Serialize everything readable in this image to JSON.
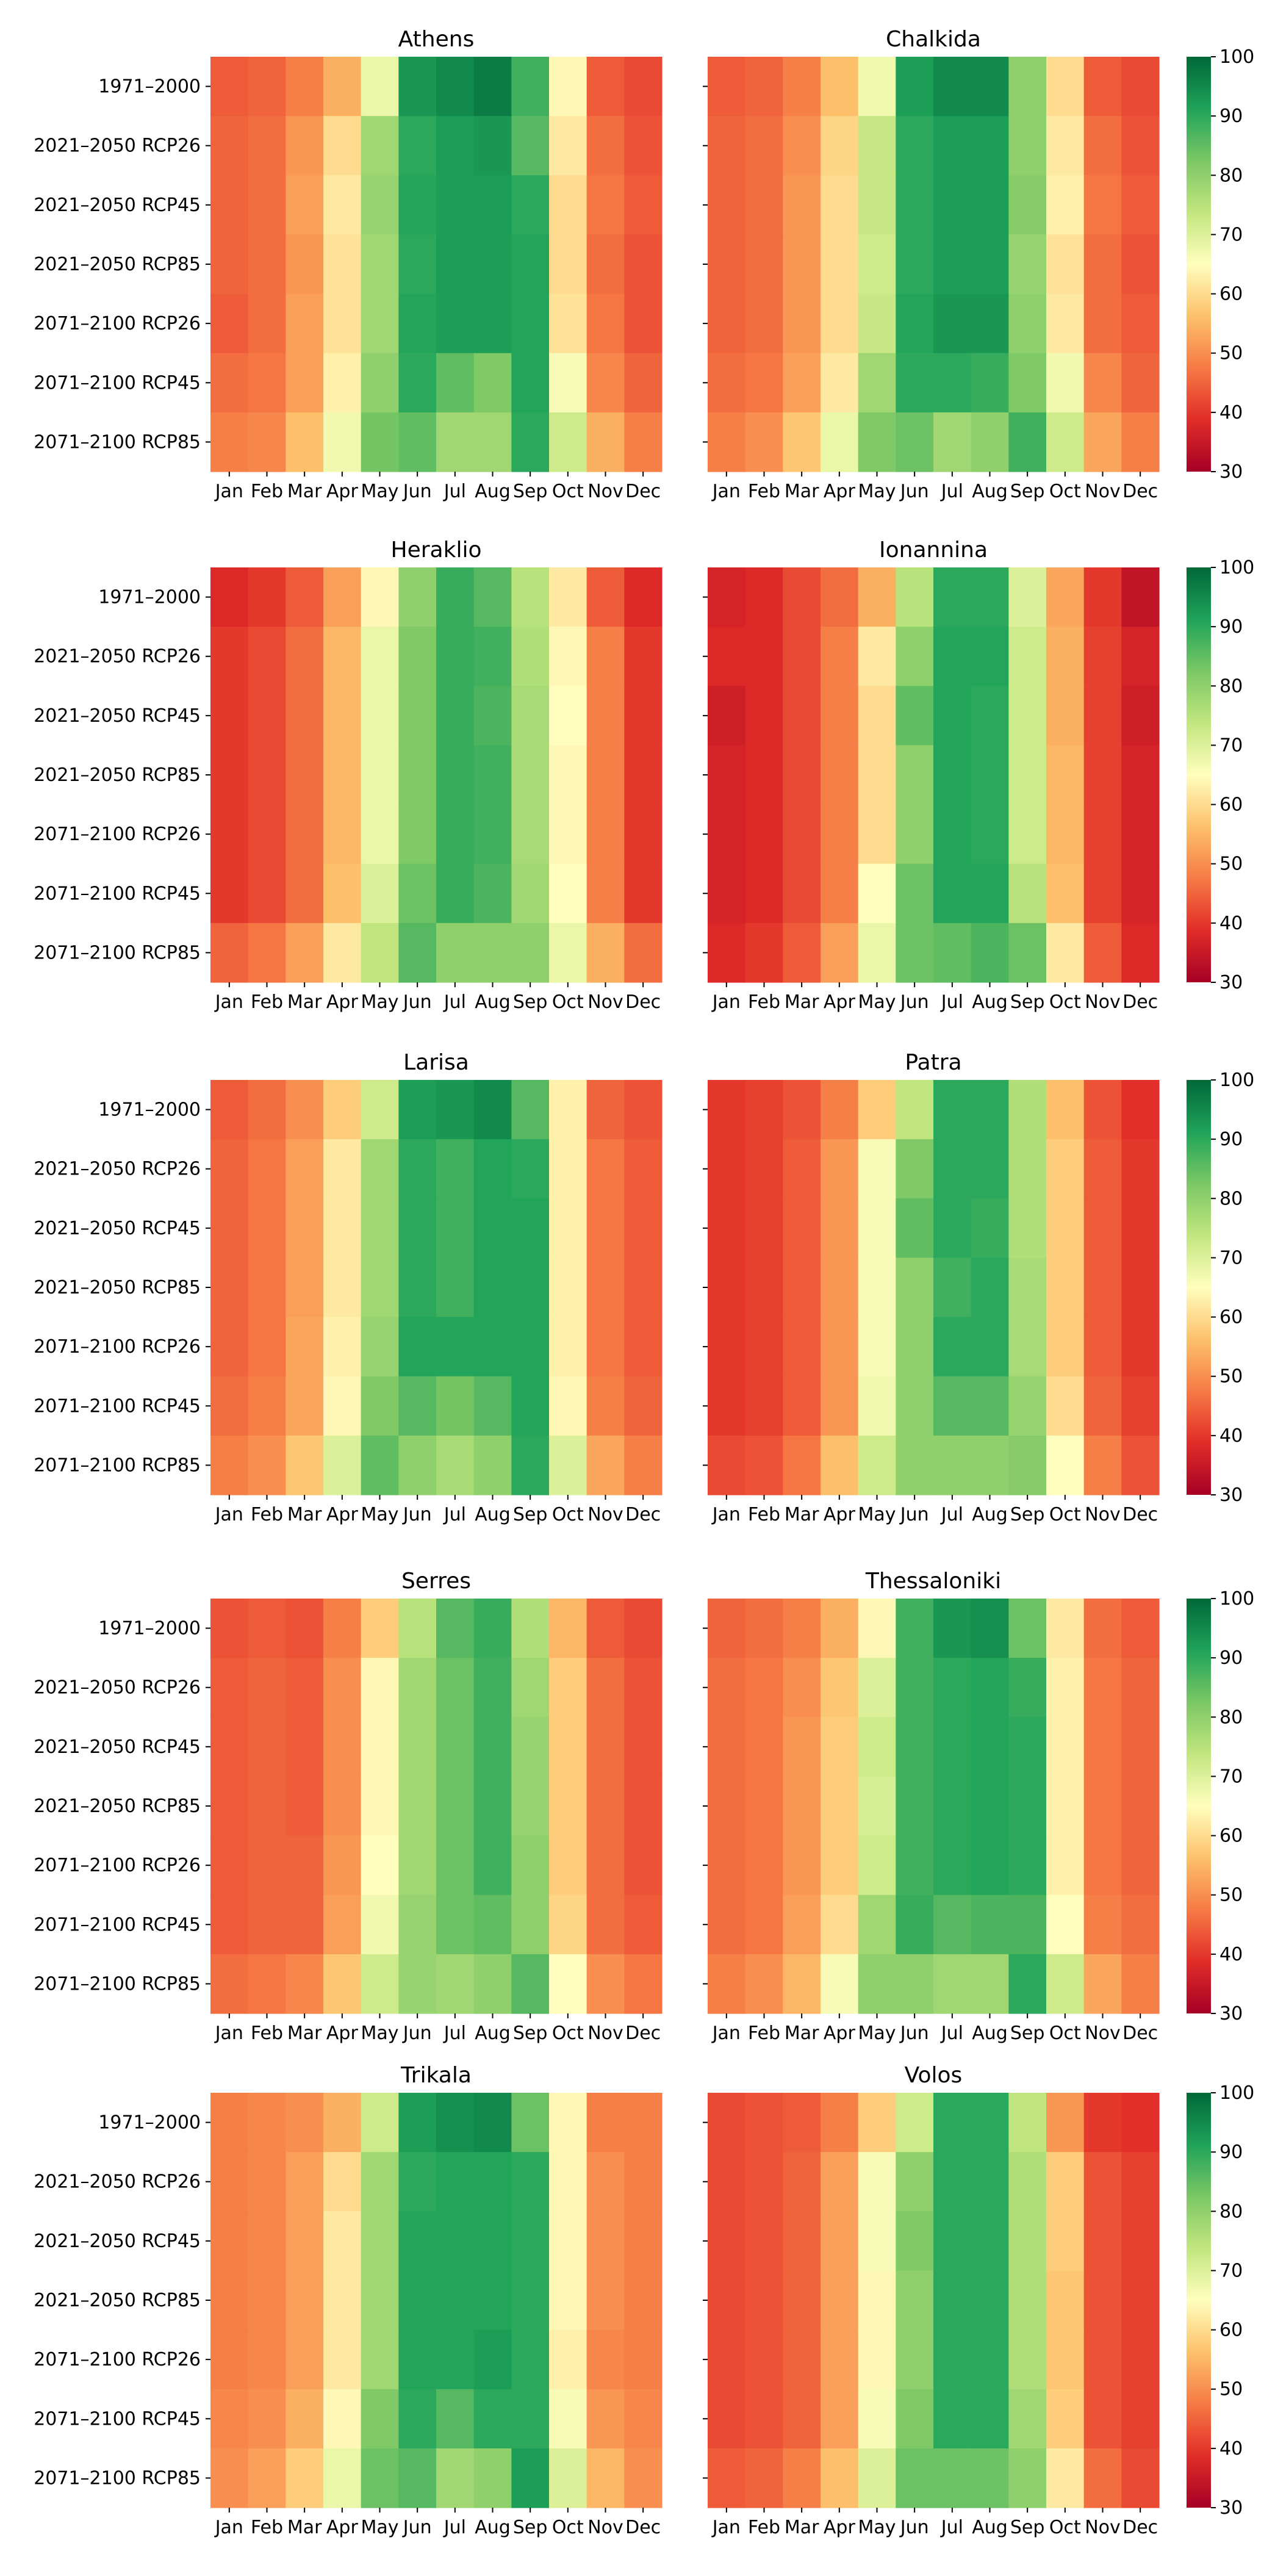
{
  "chart_data": {
    "type": "heatmap",
    "months": [
      "Jan",
      "Feb",
      "Mar",
      "Apr",
      "May",
      "Jun",
      "Jul",
      "Aug",
      "Sep",
      "Oct",
      "Nov",
      "Dec"
    ],
    "scenarios": [
      "1971–2000",
      "2021–2050 RCP26",
      "2021–2050 RCP45",
      "2021–2050 RCP85",
      "2071–2100 RCP26",
      "2071–2100 RCP45",
      "2071–2100 RCP85"
    ],
    "colorbar": {
      "min": 30,
      "max": 100,
      "ticks": [
        "30",
        "40",
        "50",
        "60",
        "70",
        "80",
        "90",
        "100"
      ],
      "colors": [
        "#a50026",
        "#e12d28",
        "#f67a45",
        "#fdc16b",
        "#fffebe",
        "#c2e67f",
        "#7bc765",
        "#1fa35a",
        "#006837"
      ]
    },
    "panels": [
      {
        "title": "Athens",
        "values": [
          [
            44,
            45,
            48,
            54,
            68,
            93,
            95,
            97,
            88,
            64,
            44,
            42
          ],
          [
            45,
            46,
            51,
            60,
            78,
            90,
            92,
            93,
            86,
            62,
            46,
            43
          ],
          [
            45,
            46,
            52,
            62,
            79,
            91,
            92,
            92,
            90,
            60,
            47,
            44
          ],
          [
            45,
            46,
            51,
            61,
            78,
            90,
            92,
            92,
            91,
            60,
            46,
            43
          ],
          [
            44,
            46,
            52,
            61,
            78,
            91,
            92,
            92,
            91,
            61,
            47,
            43
          ],
          [
            46,
            47,
            52,
            63,
            80,
            90,
            85,
            82,
            91,
            66,
            49,
            45
          ],
          [
            48,
            49,
            56,
            67,
            83,
            85,
            78,
            78,
            90,
            72,
            54,
            48
          ]
        ]
      },
      {
        "title": "Chalkida",
        "values": [
          [
            44,
            45,
            48,
            56,
            67,
            92,
            95,
            95,
            80,
            60,
            44,
            42
          ],
          [
            45,
            46,
            50,
            59,
            73,
            90,
            92,
            92,
            80,
            62,
            46,
            43
          ],
          [
            45,
            46,
            51,
            60,
            73,
            90,
            92,
            92,
            81,
            63,
            47,
            44
          ],
          [
            45,
            46,
            51,
            60,
            72,
            90,
            92,
            92,
            79,
            61,
            46,
            43
          ],
          [
            45,
            46,
            51,
            60,
            73,
            91,
            93,
            93,
            80,
            62,
            46,
            44
          ],
          [
            46,
            47,
            52,
            62,
            78,
            90,
            90,
            89,
            82,
            67,
            49,
            45
          ],
          [
            48,
            50,
            57,
            68,
            82,
            84,
            78,
            80,
            88,
            72,
            53,
            48
          ]
        ]
      },
      {
        "title": "Heraklio",
        "values": [
          [
            38,
            40,
            44,
            52,
            64,
            80,
            89,
            86,
            75,
            62,
            44,
            38
          ],
          [
            40,
            42,
            46,
            55,
            68,
            82,
            89,
            88,
            76,
            64,
            48,
            40
          ],
          [
            40,
            42,
            46,
            55,
            68,
            82,
            89,
            87,
            77,
            65,
            48,
            40
          ],
          [
            40,
            42,
            46,
            55,
            68,
            82,
            89,
            88,
            77,
            64,
            48,
            40
          ],
          [
            40,
            42,
            46,
            55,
            68,
            82,
            89,
            88,
            77,
            64,
            48,
            40
          ],
          [
            40,
            42,
            46,
            56,
            70,
            84,
            89,
            87,
            78,
            65,
            48,
            40
          ],
          [
            45,
            47,
            52,
            62,
            74,
            86,
            80,
            80,
            80,
            68,
            54,
            46
          ]
        ]
      },
      {
        "title": "Ionannina",
        "values": [
          [
            37,
            38,
            42,
            46,
            54,
            75,
            90,
            90,
            70,
            53,
            40,
            34
          ],
          [
            38,
            38,
            42,
            48,
            62,
            80,
            91,
            91,
            72,
            54,
            41,
            37
          ],
          [
            36,
            38,
            42,
            48,
            60,
            85,
            91,
            90,
            72,
            54,
            41,
            36
          ],
          [
            37,
            38,
            42,
            48,
            60,
            80,
            91,
            90,
            72,
            55,
            41,
            37
          ],
          [
            37,
            38,
            42,
            48,
            60,
            80,
            91,
            90,
            72,
            55,
            41,
            37
          ],
          [
            37,
            38,
            42,
            48,
            65,
            84,
            91,
            91,
            75,
            56,
            41,
            37
          ],
          [
            38,
            40,
            44,
            52,
            68,
            84,
            85,
            87,
            84,
            62,
            44,
            38
          ]
        ]
      },
      {
        "title": "Larisa",
        "values": [
          [
            44,
            46,
            50,
            58,
            72,
            92,
            93,
            95,
            86,
            63,
            45,
            43
          ],
          [
            45,
            47,
            52,
            62,
            78,
            90,
            88,
            91,
            90,
            63,
            47,
            44
          ],
          [
            45,
            47,
            52,
            62,
            78,
            90,
            88,
            91,
            91,
            63,
            47,
            44
          ],
          [
            45,
            47,
            52,
            62,
            78,
            90,
            88,
            91,
            91,
            63,
            47,
            44
          ],
          [
            45,
            47,
            53,
            63,
            79,
            91,
            91,
            91,
            91,
            63,
            47,
            44
          ],
          [
            46,
            48,
            53,
            64,
            82,
            86,
            83,
            86,
            91,
            64,
            48,
            45
          ],
          [
            48,
            50,
            57,
            70,
            85,
            80,
            77,
            80,
            90,
            70,
            53,
            48
          ]
        ]
      },
      {
        "title": "Patra",
        "values": [
          [
            40,
            41,
            43,
            48,
            58,
            74,
            90,
            90,
            76,
            56,
            43,
            39
          ],
          [
            40,
            41,
            44,
            51,
            66,
            82,
            90,
            90,
            76,
            58,
            44,
            40
          ],
          [
            40,
            41,
            44,
            51,
            66,
            85,
            90,
            89,
            76,
            58,
            44,
            40
          ],
          [
            40,
            41,
            44,
            51,
            66,
            80,
            88,
            90,
            77,
            58,
            44,
            40
          ],
          [
            40,
            41,
            44,
            51,
            66,
            80,
            90,
            90,
            77,
            58,
            44,
            40
          ],
          [
            40,
            41,
            44,
            51,
            67,
            80,
            86,
            86,
            79,
            60,
            45,
            41
          ],
          [
            42,
            43,
            47,
            56,
            72,
            80,
            80,
            80,
            81,
            65,
            48,
            43
          ]
        ]
      },
      {
        "title": "Serres",
        "values": [
          [
            43,
            44,
            43,
            48,
            58,
            75,
            86,
            89,
            76,
            55,
            44,
            42
          ],
          [
            44,
            45,
            44,
            50,
            64,
            78,
            84,
            88,
            78,
            58,
            46,
            43
          ],
          [
            44,
            45,
            44,
            50,
            64,
            78,
            84,
            88,
            79,
            58,
            46,
            43
          ],
          [
            44,
            45,
            44,
            50,
            64,
            78,
            84,
            88,
            79,
            58,
            46,
            43
          ],
          [
            44,
            45,
            45,
            51,
            65,
            78,
            84,
            88,
            80,
            58,
            46,
            43
          ],
          [
            44,
            45,
            45,
            52,
            67,
            79,
            84,
            85,
            80,
            59,
            46,
            44
          ],
          [
            46,
            47,
            49,
            57,
            72,
            79,
            78,
            80,
            86,
            65,
            50,
            47
          ]
        ]
      },
      {
        "title": "Thessaloniki",
        "values": [
          [
            45,
            46,
            48,
            54,
            64,
            88,
            93,
            94,
            84,
            62,
            46,
            44
          ],
          [
            46,
            47,
            50,
            57,
            70,
            88,
            90,
            91,
            89,
            63,
            47,
            45
          ],
          [
            46,
            47,
            51,
            58,
            72,
            88,
            90,
            91,
            90,
            63,
            47,
            45
          ],
          [
            46,
            47,
            51,
            58,
            71,
            88,
            90,
            91,
            90,
            63,
            47,
            45
          ],
          [
            46,
            47,
            51,
            58,
            72,
            88,
            90,
            91,
            90,
            63,
            47,
            45
          ],
          [
            46,
            47,
            52,
            60,
            78,
            89,
            86,
            87,
            87,
            65,
            48,
            46
          ],
          [
            48,
            50,
            55,
            66,
            80,
            80,
            78,
            78,
            90,
            72,
            53,
            48
          ]
        ]
      },
      {
        "title": "Trikala",
        "values": [
          [
            48,
            49,
            50,
            54,
            72,
            92,
            94,
            95,
            84,
            64,
            48,
            48
          ],
          [
            48,
            49,
            52,
            60,
            78,
            90,
            91,
            91,
            90,
            64,
            50,
            48
          ],
          [
            48,
            49,
            52,
            62,
            78,
            91,
            91,
            91,
            90,
            64,
            50,
            48
          ],
          [
            48,
            49,
            52,
            62,
            78,
            91,
            91,
            91,
            90,
            64,
            50,
            48
          ],
          [
            48,
            49,
            52,
            62,
            78,
            91,
            91,
            92,
            90,
            63,
            49,
            48
          ],
          [
            49,
            50,
            54,
            64,
            82,
            90,
            86,
            90,
            90,
            66,
            51,
            49
          ],
          [
            50,
            52,
            58,
            68,
            84,
            86,
            78,
            80,
            92,
            70,
            55,
            50
          ]
        ]
      },
      {
        "title": "Volos",
        "values": [
          [
            42,
            43,
            44,
            48,
            58,
            72,
            90,
            90,
            74,
            51,
            40,
            39
          ],
          [
            42,
            43,
            45,
            52,
            66,
            80,
            90,
            90,
            76,
            58,
            43,
            41
          ],
          [
            42,
            43,
            45,
            52,
            66,
            82,
            90,
            90,
            76,
            58,
            43,
            41
          ],
          [
            42,
            43,
            45,
            52,
            64,
            80,
            90,
            90,
            76,
            57,
            43,
            41
          ],
          [
            42,
            43,
            45,
            52,
            64,
            80,
            90,
            90,
            76,
            57,
            43,
            41
          ],
          [
            42,
            43,
            45,
            52,
            66,
            82,
            90,
            90,
            78,
            58,
            43,
            41
          ],
          [
            44,
            45,
            48,
            56,
            70,
            84,
            84,
            84,
            80,
            62,
            46,
            42
          ]
        ]
      }
    ]
  }
}
